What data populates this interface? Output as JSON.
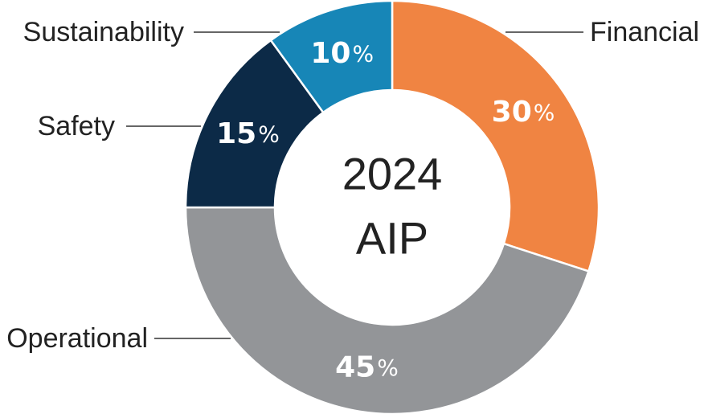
{
  "chart_data": {
    "type": "pie",
    "style": "donut",
    "center_text": [
      "2024",
      "AIP"
    ],
    "percent_suffix": "%",
    "series": [
      {
        "name": "Financial",
        "value": 30,
        "color": "#F08442"
      },
      {
        "name": "Operational",
        "value": 45,
        "color": "#939598"
      },
      {
        "name": "Safety",
        "value": 15,
        "color": "#0C2A47"
      },
      {
        "name": "Sustainability",
        "value": 10,
        "color": "#1786B7"
      }
    ]
  }
}
